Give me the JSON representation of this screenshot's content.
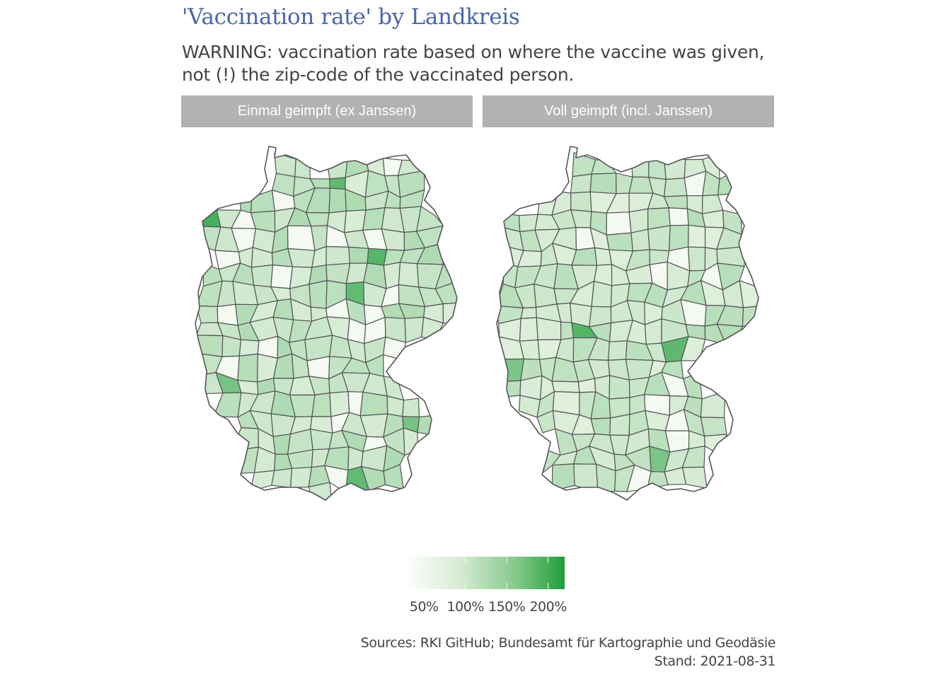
{
  "title": "'Vaccination rate' by Landkreis",
  "subtitle": {
    "line1": "WARNING: vaccination rate based on where the vaccine was given,",
    "line2": "not (!) the zip-code of the vaccinated person."
  },
  "facets": [
    {
      "label": "Einmal geimpft (ex Janssen)"
    },
    {
      "label": "Voll geimpft (incl. Janssen)"
    }
  ],
  "legend": {
    "labels": [
      "50%",
      "100%",
      "150%",
      "200%"
    ],
    "values": [
      0.5,
      1.0,
      1.5,
      2.0
    ],
    "range": [
      0.25,
      2.2
    ],
    "color_low": "#ffffff",
    "color_high": "#1e9e3a"
  },
  "caption": {
    "line1": "Sources: RKI GitHub; Bundesamt für Kartographie und Geodäsie",
    "line2": "Stand: 2021-08-31"
  },
  "colors": {
    "title": "#4a67a8",
    "text": "#444444",
    "strip_bg": "#b2b2b2",
    "strip_text": "#ffffff",
    "border": "#555555",
    "fill_light": "#e3f1df",
    "fill_dark": "#1e9e3a"
  }
}
